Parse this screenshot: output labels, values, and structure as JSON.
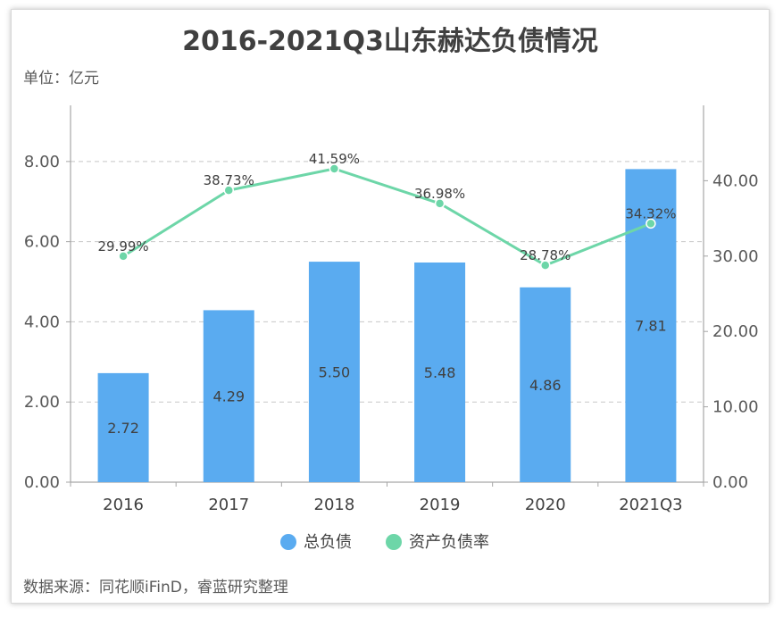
{
  "title": "2016-2021Q3山东赫达负债情况",
  "unit_label": "单位：亿元",
  "source_label": "数据来源：同花顺iFinD，睿蓝研究整理",
  "colors": {
    "bar": "#5aabf0",
    "line": "#6dd6a8",
    "grid": "#c8c8c8",
    "axis": "#a6a6a6"
  },
  "chart_data": {
    "type": "bar",
    "categories": [
      "2016",
      "2017",
      "2018",
      "2019",
      "2020",
      "2021Q3"
    ],
    "series": [
      {
        "name": "总负债",
        "type": "bar",
        "axis": "left",
        "values": [
          2.72,
          4.29,
          5.5,
          5.48,
          4.86,
          7.81
        ],
        "labels": [
          "2.72",
          "4.29",
          "5.50",
          "5.48",
          "4.86",
          "7.81"
        ]
      },
      {
        "name": "资产负债率",
        "type": "line",
        "axis": "right",
        "values": [
          29.99,
          38.73,
          41.59,
          36.98,
          28.78,
          34.32
        ],
        "labels": [
          "29.99%",
          "38.73%",
          "41.59%",
          "36.98%",
          "28.78%",
          "34.32%"
        ]
      }
    ],
    "y_left": {
      "min": 0,
      "max": 9.4,
      "ticks": [
        "0.00",
        "2.00",
        "4.00",
        "6.00",
        "8.00"
      ],
      "tick_values": [
        0,
        2,
        4,
        6,
        8
      ]
    },
    "y_right": {
      "min": 0,
      "max": 50,
      "ticks": [
        "0.00",
        "10.00",
        "20.00",
        "30.00",
        "40.00"
      ],
      "tick_values": [
        0,
        10,
        20,
        30,
        40
      ]
    },
    "grid": true,
    "legend": "bottom"
  }
}
